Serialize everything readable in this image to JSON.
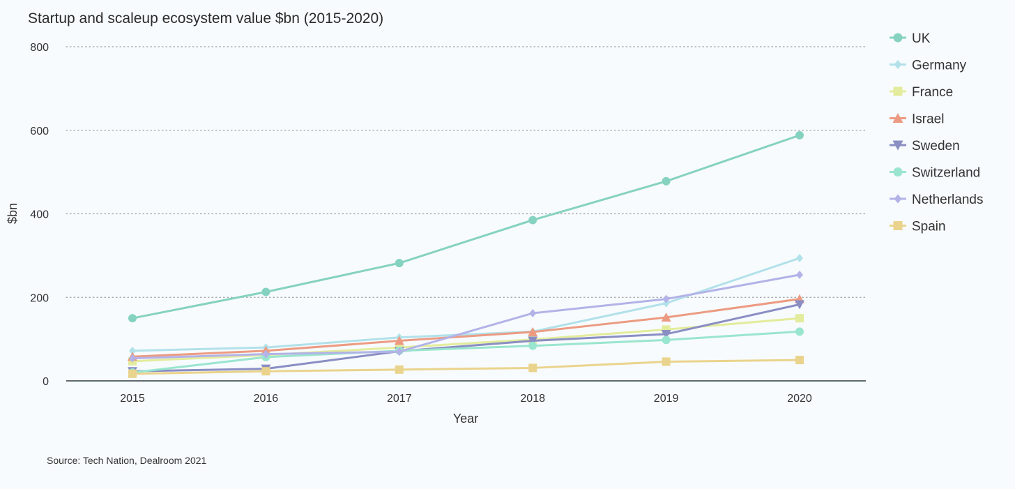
{
  "chart_data": {
    "type": "line",
    "title": "Startup and scaleup ecosystem value $bn (2015-2020)",
    "xlabel": "Year",
    "ylabel": "$bn",
    "x": [
      "2015",
      "2016",
      "2017",
      "2018",
      "2019",
      "2020"
    ],
    "ylim": [
      0,
      800
    ],
    "yticks": [
      0,
      200,
      400,
      600,
      800
    ],
    "grid": "horizontal-dotted",
    "legend_position": "right",
    "series": [
      {
        "name": "UK",
        "color": "#86d2c1",
        "marker": "circle",
        "values": [
          150,
          213,
          282,
          385,
          478,
          588
        ]
      },
      {
        "name": "Germany",
        "color": "#b2e1ea",
        "marker": "diamond",
        "values": [
          72,
          80,
          104,
          118,
          186,
          294
        ]
      },
      {
        "name": "France",
        "color": "#e3ec9c",
        "marker": "square",
        "values": [
          47,
          62,
          80,
          99,
          123,
          150
        ]
      },
      {
        "name": "Israel",
        "color": "#ec9b82",
        "marker": "triangle-up",
        "values": [
          58,
          72,
          96,
          117,
          152,
          196
        ]
      },
      {
        "name": "Sweden",
        "color": "#8a8ec3",
        "marker": "triangle-down",
        "values": [
          23,
          29,
          71,
          96,
          112,
          183
        ]
      },
      {
        "name": "Switzerland",
        "color": "#9ae5ce",
        "marker": "circle",
        "values": [
          20,
          57,
          72,
          84,
          98,
          118
        ]
      },
      {
        "name": "Netherlands",
        "color": "#b3b3e8",
        "marker": "diamond",
        "values": [
          54,
          64,
          70,
          162,
          196,
          254
        ]
      },
      {
        "name": "Spain",
        "color": "#ead38c",
        "marker": "square",
        "values": [
          17,
          23,
          27,
          31,
          46,
          50
        ]
      }
    ],
    "source": "Source: Tech Nation, Dealroom 2021"
  }
}
